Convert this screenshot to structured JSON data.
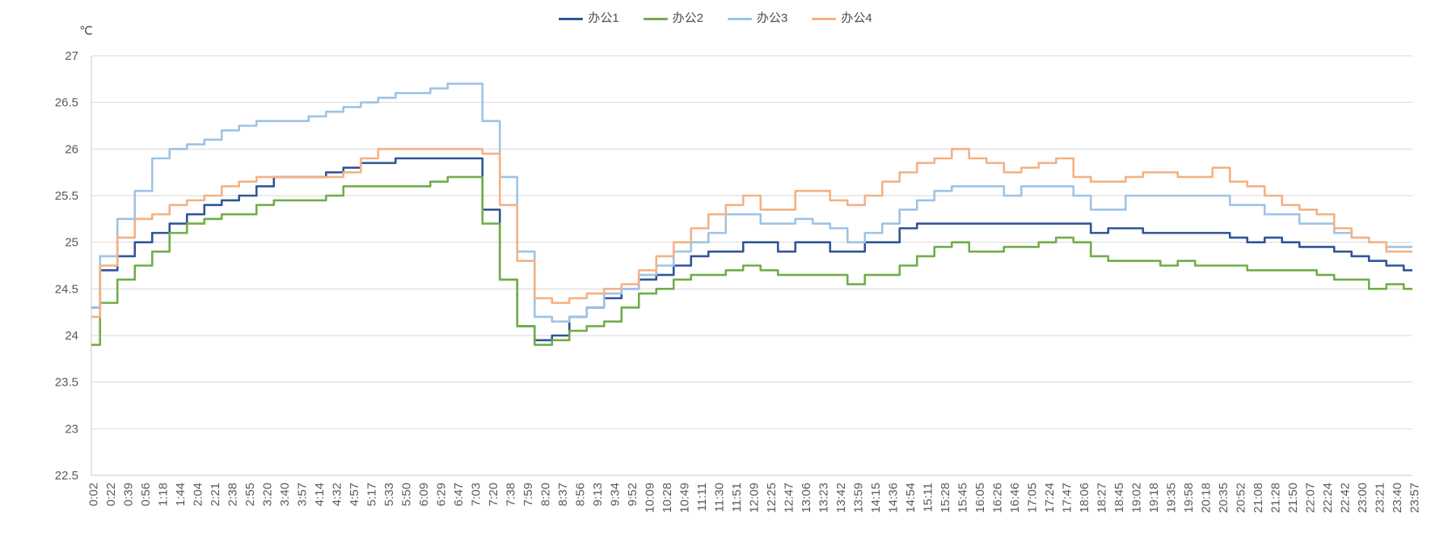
{
  "chart_data": {
    "type": "line",
    "title": "",
    "y_unit": "℃",
    "ylabel": "",
    "xlabel": "",
    "ylim": [
      22.5,
      27
    ],
    "y_tick_step": 0.5,
    "y_tick_labels": [
      "27",
      "26.5",
      "26",
      "25.5",
      "25",
      "24.5",
      "24",
      "23.5",
      "23",
      "22.5"
    ],
    "grid": true,
    "line_style": "step-mid",
    "legend_position": "top-center",
    "x_categories": [
      "0:02",
      "0:22",
      "0:39",
      "0:56",
      "1:18",
      "1:44",
      "2:04",
      "2:21",
      "2:38",
      "2:55",
      "3:20",
      "3:40",
      "3:57",
      "4:14",
      "4:32",
      "4:57",
      "5:17",
      "5:33",
      "5:50",
      "6:09",
      "6:29",
      "6:47",
      "7:03",
      "7:20",
      "7:38",
      "7:59",
      "8:20",
      "8:37",
      "8:56",
      "9:13",
      "9:34",
      "9:52",
      "10:09",
      "10:28",
      "10:49",
      "11:11",
      "11:30",
      "11:51",
      "12:09",
      "12:25",
      "12:47",
      "13:06",
      "13:23",
      "13:42",
      "13:59",
      "14:15",
      "14:36",
      "14:54",
      "15:11",
      "15:28",
      "15:45",
      "16:05",
      "16:26",
      "16:46",
      "17:05",
      "17:24",
      "17:47",
      "18:06",
      "18:27",
      "18:45",
      "19:02",
      "19:18",
      "19:35",
      "19:58",
      "20:18",
      "20:35",
      "20:52",
      "21:08",
      "21:28",
      "21:50",
      "22:07",
      "22:24",
      "22:42",
      "23:00",
      "23:21",
      "23:40",
      "23:57"
    ],
    "series": [
      {
        "name": "办公1",
        "color": "#2F5597",
        "values": [
          24.3,
          24.7,
          24.85,
          25.0,
          25.1,
          25.2,
          25.3,
          25.4,
          25.45,
          25.5,
          25.6,
          25.7,
          25.7,
          25.7,
          25.75,
          25.8,
          25.85,
          25.85,
          25.9,
          25.9,
          25.9,
          25.9,
          25.9,
          25.35,
          24.6,
          24.1,
          23.95,
          24.0,
          24.2,
          24.3,
          24.4,
          24.5,
          24.6,
          24.65,
          24.75,
          24.85,
          24.9,
          24.9,
          25.0,
          25.0,
          24.9,
          25.0,
          25.0,
          24.9,
          24.9,
          25.0,
          25.0,
          25.15,
          25.2,
          25.2,
          25.2,
          25.2,
          25.2,
          25.2,
          25.2,
          25.2,
          25.2,
          25.2,
          25.1,
          25.15,
          25.15,
          25.1,
          25.1,
          25.1,
          25.1,
          25.1,
          25.05,
          25.0,
          25.05,
          25.0,
          24.95,
          24.95,
          24.9,
          24.85,
          24.8,
          24.75,
          24.7
        ]
      },
      {
        "name": "办公2",
        "color": "#70AD47",
        "values": [
          23.9,
          24.35,
          24.6,
          24.75,
          24.9,
          25.1,
          25.2,
          25.25,
          25.3,
          25.3,
          25.4,
          25.45,
          25.45,
          25.45,
          25.5,
          25.6,
          25.6,
          25.6,
          25.6,
          25.6,
          25.65,
          25.7,
          25.7,
          25.2,
          24.6,
          24.1,
          23.9,
          23.95,
          24.05,
          24.1,
          24.15,
          24.3,
          24.45,
          24.5,
          24.6,
          24.65,
          24.65,
          24.7,
          24.75,
          24.7,
          24.65,
          24.65,
          24.65,
          24.65,
          24.55,
          24.65,
          24.65,
          24.75,
          24.85,
          24.95,
          25.0,
          24.9,
          24.9,
          24.95,
          24.95,
          25.0,
          25.05,
          25.0,
          24.85,
          24.8,
          24.8,
          24.8,
          24.75,
          24.8,
          24.75,
          24.75,
          24.75,
          24.7,
          24.7,
          24.7,
          24.7,
          24.65,
          24.6,
          24.6,
          24.5,
          24.55,
          24.5
        ]
      },
      {
        "name": "办公3",
        "color": "#9DC3E6",
        "values": [
          24.3,
          24.85,
          25.25,
          25.55,
          25.9,
          26.0,
          26.05,
          26.1,
          26.2,
          26.25,
          26.3,
          26.3,
          26.3,
          26.35,
          26.4,
          26.45,
          26.5,
          26.55,
          26.6,
          26.6,
          26.65,
          26.7,
          26.7,
          26.3,
          25.7,
          24.9,
          24.2,
          24.15,
          24.2,
          24.3,
          24.45,
          24.5,
          24.65,
          24.75,
          24.9,
          25.0,
          25.1,
          25.3,
          25.3,
          25.2,
          25.2,
          25.25,
          25.2,
          25.15,
          25.0,
          25.1,
          25.2,
          25.35,
          25.45,
          25.55,
          25.6,
          25.6,
          25.6,
          25.5,
          25.6,
          25.6,
          25.6,
          25.5,
          25.35,
          25.35,
          25.5,
          25.5,
          25.5,
          25.5,
          25.5,
          25.5,
          25.4,
          25.4,
          25.3,
          25.3,
          25.2,
          25.2,
          25.1,
          25.05,
          25.0,
          24.95,
          24.95
        ]
      },
      {
        "name": "办公4",
        "color": "#F4B183",
        "values": [
          24.2,
          24.75,
          25.05,
          25.25,
          25.3,
          25.4,
          25.45,
          25.5,
          25.6,
          25.65,
          25.7,
          25.7,
          25.7,
          25.7,
          25.7,
          25.75,
          25.9,
          26.0,
          26.0,
          26.0,
          26.0,
          26.0,
          26.0,
          25.95,
          25.4,
          24.8,
          24.4,
          24.35,
          24.4,
          24.45,
          24.5,
          24.55,
          24.7,
          24.85,
          25.0,
          25.15,
          25.3,
          25.4,
          25.5,
          25.35,
          25.35,
          25.55,
          25.55,
          25.45,
          25.4,
          25.5,
          25.65,
          25.75,
          25.85,
          25.9,
          26.0,
          25.9,
          25.85,
          25.75,
          25.8,
          25.85,
          25.9,
          25.7,
          25.65,
          25.65,
          25.7,
          25.75,
          25.75,
          25.7,
          25.7,
          25.8,
          25.65,
          25.6,
          25.5,
          25.4,
          25.35,
          25.3,
          25.15,
          25.05,
          25.0,
          24.9,
          24.9
        ]
      }
    ]
  },
  "colors": {
    "tick_label": "#595959",
    "legend_label": "#4d4d4d",
    "gridline": "#D9D9D9",
    "axis_line": "#C8C8C8",
    "background": "#FFFFFF"
  }
}
